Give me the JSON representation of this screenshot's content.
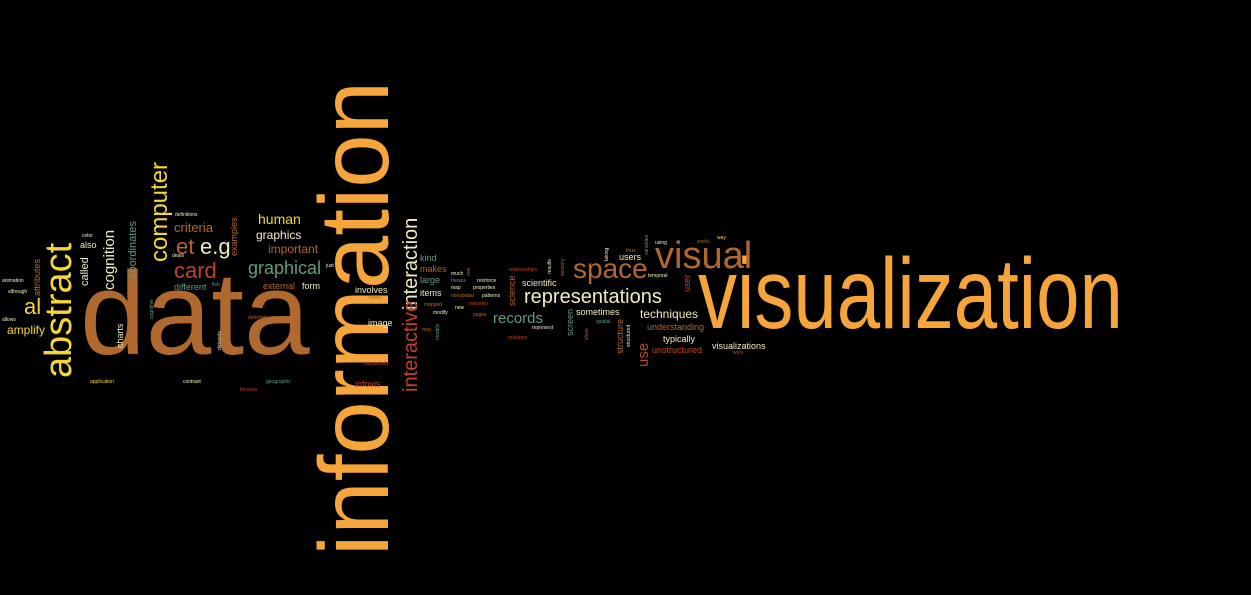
{
  "title": "",
  "colors": {
    "background": "#000000",
    "orange": "#F5A53A",
    "brown": "#B0682E",
    "yellow": "#F4D53A",
    "cream": "#F2EBC0",
    "red": "#C2412A",
    "green": "#5D9E80"
  },
  "words": [
    {
      "text": "visualization",
      "size": "large",
      "color": "orange"
    },
    {
      "text": "information",
      "size": "large",
      "color": "orange"
    },
    {
      "text": "data",
      "size": "large",
      "color": "brown"
    },
    {
      "text": "abstract",
      "size": "medium",
      "color": "yellow"
    },
    {
      "text": "visual",
      "size": "medium",
      "color": "brown"
    },
    {
      "text": "space",
      "size": "medium",
      "color": "brown"
    },
    {
      "text": "representations",
      "size": "medium",
      "color": "cream"
    },
    {
      "text": "computer",
      "size": "medium",
      "color": "yellow"
    },
    {
      "text": "interaction",
      "size": "medium",
      "color": "cream"
    },
    {
      "text": "interactive",
      "size": "medium",
      "color": "red"
    },
    {
      "text": "card",
      "size": "medium",
      "color": "red"
    },
    {
      "text": "e.g",
      "size": "medium",
      "color": "cream"
    },
    {
      "text": "et",
      "size": "medium",
      "color": "brown"
    },
    {
      "text": "al",
      "size": "medium",
      "color": "yellow"
    },
    {
      "text": "graphical",
      "size": "medium",
      "color": "green"
    },
    {
      "text": "human",
      "size": "small",
      "color": "yellow"
    },
    {
      "text": "graphics",
      "size": "small",
      "color": "cream"
    },
    {
      "text": "important",
      "size": "small",
      "color": "brown"
    },
    {
      "text": "criteria",
      "size": "small",
      "color": "brown"
    },
    {
      "text": "cognition",
      "size": "small",
      "color": "cream"
    },
    {
      "text": "coordinates",
      "size": "small",
      "color": "green"
    },
    {
      "text": "records",
      "size": "small",
      "color": "green"
    },
    {
      "text": "techniques",
      "size": "small",
      "color": "cream"
    },
    {
      "text": "use",
      "size": "small",
      "color": "red"
    },
    {
      "text": "amplify",
      "size": "small",
      "color": "yellow"
    },
    {
      "text": "called",
      "size": "small",
      "color": "cream"
    },
    {
      "text": "also",
      "size": "small",
      "color": "cream"
    },
    {
      "text": "charts",
      "size": "small",
      "color": "cream"
    },
    {
      "text": "examples",
      "size": "small",
      "color": "brown"
    },
    {
      "text": "different",
      "size": "small",
      "color": "green"
    },
    {
      "text": "external",
      "size": "small",
      "color": "brown"
    },
    {
      "text": "form",
      "size": "small",
      "color": "cream"
    },
    {
      "text": "involves",
      "size": "small",
      "color": "cream"
    },
    {
      "text": "image",
      "size": "small",
      "color": "cream"
    },
    {
      "text": "infovis",
      "size": "small",
      "color": "red"
    },
    {
      "text": "kind",
      "size": "small",
      "color": "green"
    },
    {
      "text": "makes",
      "size": "small",
      "color": "brown"
    },
    {
      "text": "large",
      "size": "small",
      "color": "green"
    },
    {
      "text": "items",
      "size": "small",
      "color": "cream"
    },
    {
      "text": "scientific",
      "size": "small",
      "color": "cream"
    },
    {
      "text": "science",
      "size": "small",
      "color": "brown"
    },
    {
      "text": "screen",
      "size": "small",
      "color": "green"
    },
    {
      "text": "sometimes",
      "size": "small",
      "color": "cream"
    },
    {
      "text": "users",
      "size": "small",
      "color": "cream"
    },
    {
      "text": "user",
      "size": "small",
      "color": "red"
    },
    {
      "text": "structure",
      "size": "small",
      "color": "brown"
    },
    {
      "text": "understanding",
      "size": "small",
      "color": "brown"
    },
    {
      "text": "typically",
      "size": "small",
      "color": "cream"
    },
    {
      "text": "unstructured",
      "size": "small",
      "color": "red"
    },
    {
      "text": "visualizations",
      "size": "small",
      "color": "cream"
    },
    {
      "text": "attributes",
      "size": "tiny",
      "color": "brown"
    },
    {
      "text": "animation",
      "size": "tiny",
      "color": "cream"
    },
    {
      "text": "although",
      "size": "tiny",
      "color": "cream"
    },
    {
      "text": "allows",
      "size": "tiny",
      "color": "cream"
    },
    {
      "text": "color",
      "size": "tiny",
      "color": "cream"
    },
    {
      "text": "definitions",
      "size": "tiny",
      "color": "cream"
    },
    {
      "text": "deals",
      "size": "tiny",
      "color": "cream"
    },
    {
      "text": "fish",
      "size": "tiny",
      "color": "green"
    },
    {
      "text": "cognitive",
      "size": "tiny",
      "color": "green"
    },
    {
      "text": "deferred",
      "size": "tiny",
      "color": "brown"
    },
    {
      "text": "datasets",
      "size": "tiny",
      "color": "cream"
    },
    {
      "text": "application",
      "size": "tiny",
      "color": "yellow"
    },
    {
      "text": "contrast",
      "size": "tiny",
      "color": "cream"
    },
    {
      "text": "focuses",
      "size": "tiny",
      "color": "red"
    },
    {
      "text": "geographic",
      "size": "tiny",
      "color": "green"
    },
    {
      "text": "terms",
      "size": "tiny",
      "color": "brown"
    },
    {
      "text": "just",
      "size": "tiny",
      "color": "cream"
    },
    {
      "text": "make",
      "size": "tiny",
      "color": "brown"
    },
    {
      "text": "interactivity",
      "size": "tiny",
      "color": "red"
    },
    {
      "text": "mapped",
      "size": "tiny",
      "color": "brown"
    },
    {
      "text": "map",
      "size": "tiny",
      "color": "cream"
    },
    {
      "text": "modify",
      "size": "tiny",
      "color": "cream"
    },
    {
      "text": "may",
      "size": "tiny",
      "color": "brown"
    },
    {
      "text": "much",
      "size": "tiny",
      "color": "cream"
    },
    {
      "text": "means",
      "size": "tiny",
      "color": "green"
    },
    {
      "text": "nonspatial",
      "size": "tiny",
      "color": "brown"
    },
    {
      "text": "new",
      "size": "tiny",
      "color": "cream"
    },
    {
      "text": "models",
      "size": "tiny",
      "color": "green"
    },
    {
      "text": "one",
      "size": "tiny",
      "color": "brown"
    },
    {
      "text": "reinforce",
      "size": "tiny",
      "color": "cream"
    },
    {
      "text": "properties",
      "size": "tiny",
      "color": "cream"
    },
    {
      "text": "patterns",
      "size": "tiny",
      "color": "cream"
    },
    {
      "text": "overview",
      "size": "tiny",
      "color": "red"
    },
    {
      "text": "pages",
      "size": "tiny",
      "color": "brown"
    },
    {
      "text": "relationships",
      "size": "tiny",
      "color": "red"
    },
    {
      "text": "relations",
      "size": "tiny",
      "color": "red"
    },
    {
      "text": "represent",
      "size": "tiny",
      "color": "cream"
    },
    {
      "text": "results",
      "size": "tiny",
      "color": "cream"
    },
    {
      "text": "sensory",
      "size": "tiny",
      "color": "brown"
    },
    {
      "text": "spatial",
      "size": "tiny",
      "color": "green"
    },
    {
      "text": "show",
      "size": "tiny",
      "color": "brown"
    },
    {
      "text": "structured",
      "size": "tiny",
      "color": "cream"
    },
    {
      "text": "taking",
      "size": "tiny",
      "color": "cream"
    },
    {
      "text": "thus",
      "size": "tiny",
      "color": "brown"
    },
    {
      "text": "using",
      "size": "tiny",
      "color": "cream"
    },
    {
      "text": "variables",
      "size": "tiny",
      "color": "green"
    },
    {
      "text": "temporal",
      "size": "tiny",
      "color": "cream"
    },
    {
      "text": "world",
      "size": "tiny",
      "color": "brown"
    },
    {
      "text": "way",
      "size": "tiny",
      "color": "yellow"
    },
    {
      "text": "work",
      "size": "tiny",
      "color": "red"
    }
  ]
}
